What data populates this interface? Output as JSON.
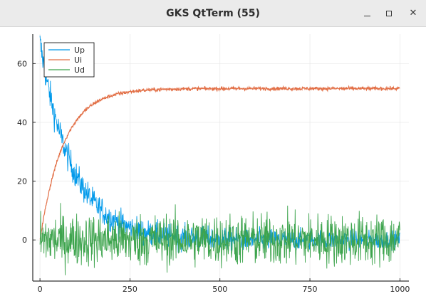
{
  "window": {
    "title": "GKS QtTerm (55)",
    "minimize_icon": "minimize-icon",
    "maximize_icon": "maximize-icon",
    "close_icon": "close-icon",
    "close_glyph": "✕"
  },
  "chart_data": {
    "type": "line",
    "title": "",
    "xlabel": "",
    "ylabel": "",
    "xlim": [
      -20,
      1025
    ],
    "ylim": [
      -14,
      70
    ],
    "xticks": [
      0,
      250,
      500,
      750,
      1000
    ],
    "xtick_labels": [
      "0",
      "250",
      "500",
      "750",
      "1000"
    ],
    "yticks": [
      0,
      20,
      40,
      60
    ],
    "ytick_labels": [
      "0",
      "20",
      "40",
      "60"
    ],
    "grid": true,
    "legend_position": "top-left",
    "series": [
      {
        "name": "Up",
        "color": "#0099ea",
        "model": "exp-decay",
        "start": 67,
        "end": 0,
        "tau": 90,
        "noise_start": 2.5,
        "noise_end": 1.5
      },
      {
        "name": "Ui",
        "color": "#e26f46",
        "model": "exp-rise",
        "start": 0,
        "end": 51.5,
        "tau": 65,
        "noise_start": 0.3,
        "noise_end": 0.3
      },
      {
        "name": "Ud",
        "color": "#3da44d",
        "model": "noise",
        "start": 0,
        "end": 0,
        "tau": 1,
        "noise_start": 4.5,
        "noise_end": 4.5
      }
    ],
    "samples": 1000
  }
}
